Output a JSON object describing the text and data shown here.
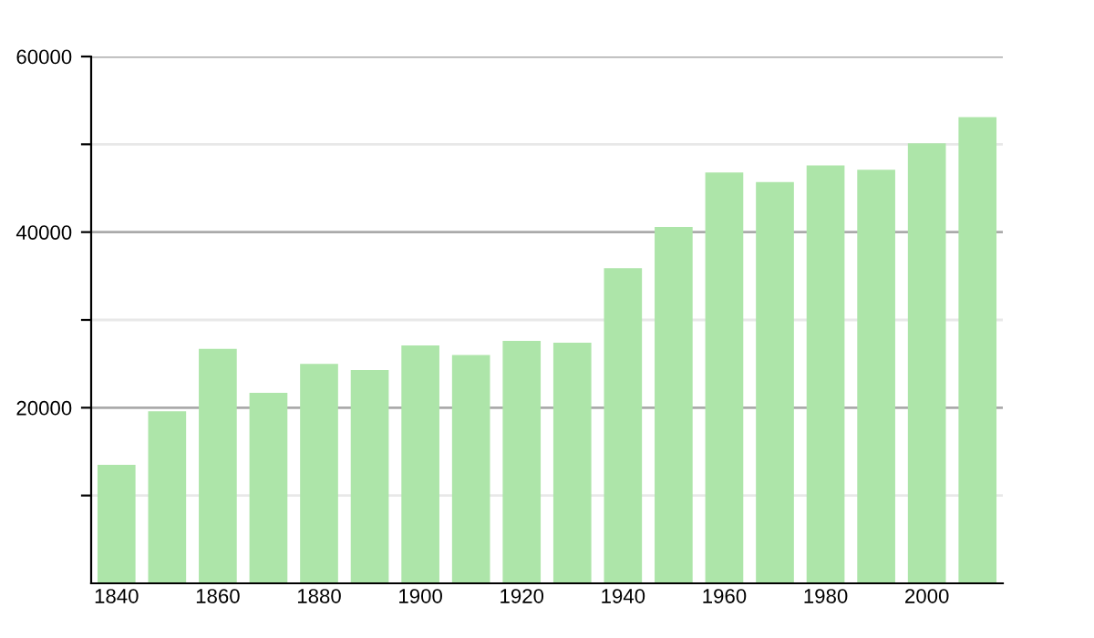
{
  "chart_data": {
    "type": "bar",
    "categories": [
      "1840",
      null,
      "1860",
      null,
      "1880",
      null,
      "1900",
      null,
      "1920",
      null,
      "1940",
      null,
      "1960",
      null,
      "1980",
      null,
      "2000",
      null
    ],
    "values": [
      13500,
      19600,
      26700,
      21700,
      25000,
      24300,
      27100,
      26000,
      27600,
      27400,
      35900,
      40600,
      46800,
      45700,
      47600,
      47100,
      50100,
      53100
    ],
    "color": "#ade5a9",
    "ylim": [
      0,
      60000
    ],
    "yticks": [
      {
        "value": 10000,
        "label": null
      },
      20000,
      {
        "value": 30000,
        "label": null
      },
      40000,
      {
        "value": 50000,
        "label": null
      },
      60000
    ],
    "grid": true
  }
}
